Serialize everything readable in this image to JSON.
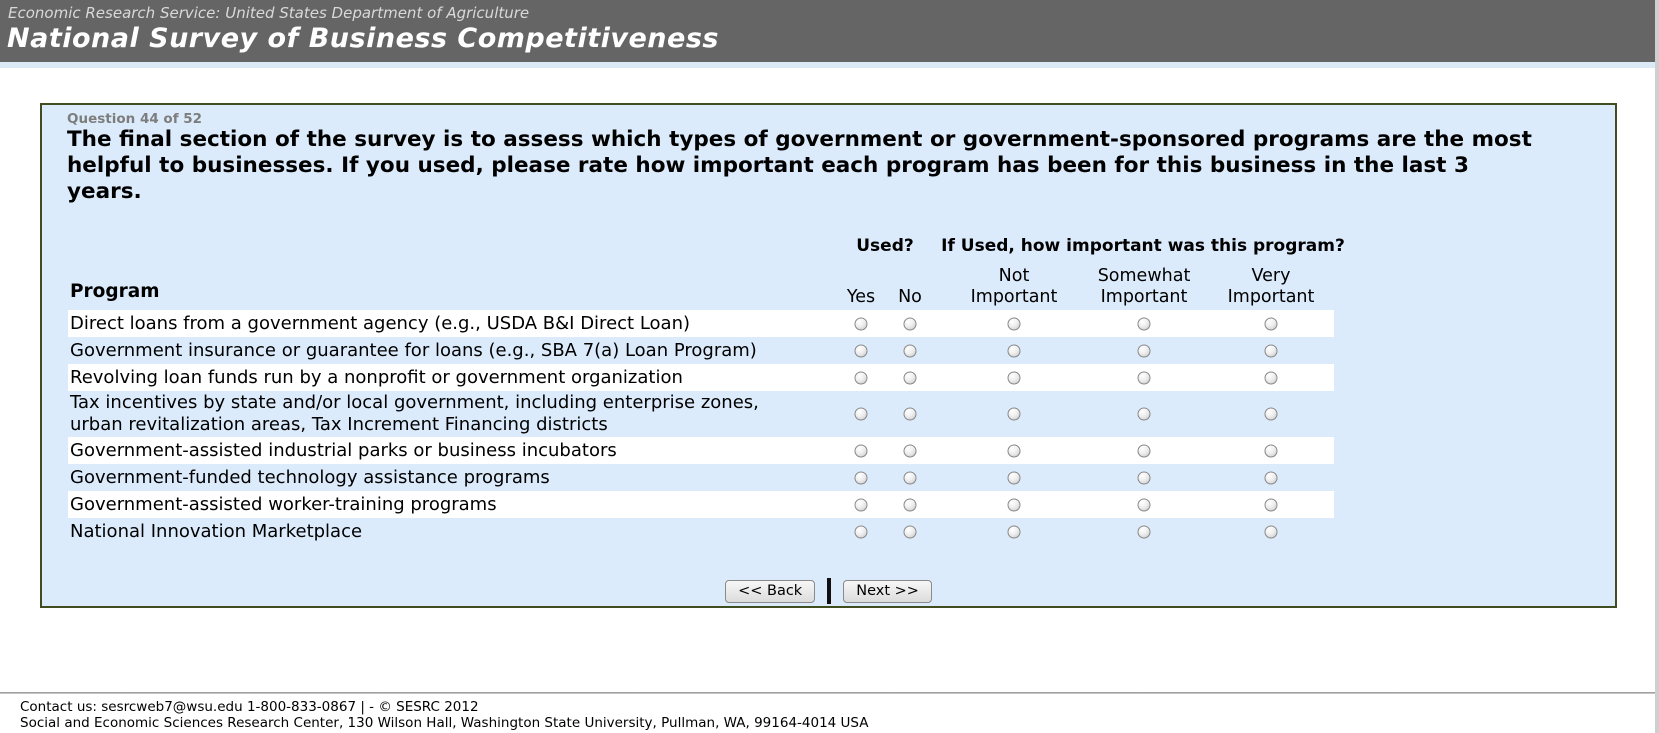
{
  "header": {
    "agency_line": "Economic Research Service: United States Department of Agriculture",
    "title": "National Survey of Business Competitiveness"
  },
  "question": {
    "progress": "Question 44 of 52",
    "text": "The final section of the survey is to assess which types of government or government-sponsored programs are the most helpful to businesses. If you used, please rate how important each program has been for this business in the last 3 years."
  },
  "table": {
    "program_header": "Program",
    "used_group_header": "Used?",
    "importance_group_header": "If Used, how important was this program?",
    "used_options": [
      "Yes",
      "No"
    ],
    "importance_options": [
      "Not Important",
      "Somewhat Important",
      "Very Important"
    ],
    "rows": [
      "Direct loans from a government agency (e.g., USDA B&I Direct Loan)",
      "Government insurance or guarantee for loans (e.g., SBA 7(a) Loan Program)",
      "Revolving loan funds run by a nonprofit or government organization",
      "Tax incentives by state and/or local government, including enterprise zones, urban revitalization areas, Tax Increment Financing districts",
      "Government-assisted industrial parks or business incubators",
      "Government-funded technology assistance programs",
      "Government-assisted worker-training programs",
      "National Innovation Marketplace"
    ],
    "radio_state": "all-unselected"
  },
  "buttons": {
    "back": "<< Back",
    "separator": "|",
    "next": "Next >>"
  },
  "footer": {
    "line1": "Contact us: sesrcweb7@wsu.edu 1-800-833-0867 | - © SESRC 2012",
    "line2": "Social and Economic Sciences Research Center, 130 Wilson Hall, Washington State University, Pullman, WA, 99164-4014 USA"
  },
  "colors": {
    "header_bg": "#656565",
    "header_title": "#ffffff",
    "panel_bg": "#dcebfb",
    "panel_border": "#3f4d21",
    "row_highlight": "#ffffff",
    "progress_text": "#7d7d7d"
  }
}
